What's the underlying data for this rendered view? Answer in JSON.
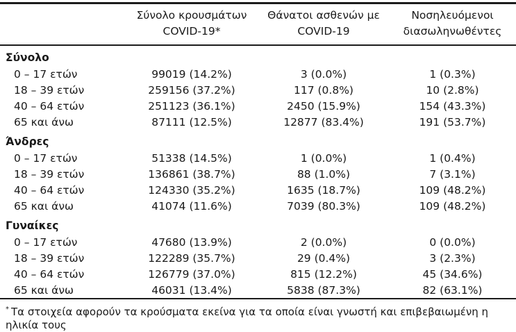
{
  "table": {
    "columns": [
      {
        "line1": "Σύνολο κρουσμάτων",
        "line2": "COVID-19*"
      },
      {
        "line1": "Θάνατοι ασθενών με",
        "line2": "COVID-19"
      },
      {
        "line1": "Νοσηλευόμενοι",
        "line2": "διασωληνωθέντες"
      }
    ],
    "sections": [
      {
        "label": "Σύνολο",
        "rows": [
          {
            "age": "0 – 17 ετών",
            "cases": "99019 (14.2%)",
            "deaths": "3 (0.0%)",
            "intubated": "1 (0.3%)"
          },
          {
            "age": "18 – 39 ετών",
            "cases": "259156 (37.2%)",
            "deaths": "117 (0.8%)",
            "intubated": "10 (2.8%)"
          },
          {
            "age": "40 – 64 ετών",
            "cases": "251123 (36.1%)",
            "deaths": "2450 (15.9%)",
            "intubated": "154 (43.3%)"
          },
          {
            "age": "65 και άνω",
            "cases": "87111 (12.5%)",
            "deaths": "12877 (83.4%)",
            "intubated": "191 (53.7%)"
          }
        ]
      },
      {
        "label": "Άνδρες",
        "rows": [
          {
            "age": "0 – 17 ετών",
            "cases": "51338 (14.5%)",
            "deaths": "1 (0.0%)",
            "intubated": "1 (0.4%)"
          },
          {
            "age": "18 – 39 ετών",
            "cases": "136861 (38.7%)",
            "deaths": "88 (1.0%)",
            "intubated": "7 (3.1%)"
          },
          {
            "age": "40 – 64 ετών",
            "cases": "124330 (35.2%)",
            "deaths": "1635 (18.7%)",
            "intubated": "109 (48.2%)"
          },
          {
            "age": "65 και άνω",
            "cases": "41074 (11.6%)",
            "deaths": "7039 (80.3%)",
            "intubated": "109 (48.2%)"
          }
        ]
      },
      {
        "label": "Γυναίκες",
        "rows": [
          {
            "age": "0 – 17 ετών",
            "cases": "47680 (13.9%)",
            "deaths": "2 (0.0%)",
            "intubated": "0 (0.0%)"
          },
          {
            "age": "18 – 39 ετών",
            "cases": "122289 (35.7%)",
            "deaths": "29 (0.4%)",
            "intubated": "3 (2.3%)"
          },
          {
            "age": "40 – 64 ετών",
            "cases": "126779 (37.0%)",
            "deaths": "815 (12.2%)",
            "intubated": "45 (34.6%)"
          },
          {
            "age": "65 και άνω",
            "cases": "46031 (13.4%)",
            "deaths": "5838 (87.3%)",
            "intubated": "82 (63.1%)"
          }
        ]
      }
    ]
  },
  "footnote": {
    "marker": "*",
    "text": "Τα στοιχεία αφορούν τα κρούσματα εκείνα για τα οποία είναι γνωστή και επιβεβαιωμένη η ηλικία τους"
  },
  "colors": {
    "text": "#1a1a1a",
    "rule": "#1c1c1c",
    "background": "#ffffff"
  }
}
